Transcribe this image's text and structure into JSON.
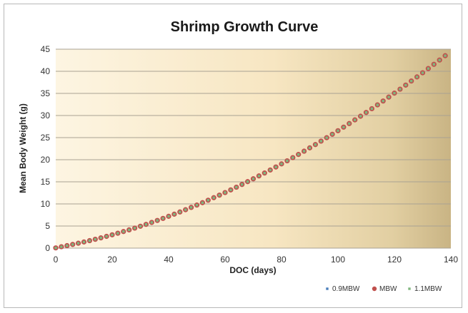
{
  "chart_data": {
    "type": "scatter",
    "title": "Shrimp Growth Curve",
    "xlabel": "DOC (days)",
    "ylabel": "Mean Body Weight (g)",
    "xlim": [
      0,
      140
    ],
    "ylim": [
      0,
      45
    ],
    "x_ticks": [
      "0",
      "20",
      "40",
      "60",
      "80",
      "100",
      "120",
      "140"
    ],
    "y_ticks": [
      "0",
      "5",
      "10",
      "15",
      "20",
      "25",
      "30",
      "35",
      "40",
      "45"
    ],
    "grid": "horizontal",
    "legend_position": "bottom-right",
    "x": [
      0,
      2,
      4,
      6,
      8,
      10,
      12,
      14,
      16,
      18,
      20,
      22,
      24,
      26,
      28,
      30,
      32,
      34,
      36,
      38,
      40,
      42,
      44,
      46,
      48,
      50,
      52,
      54,
      56,
      58,
      60,
      62,
      64,
      66,
      68,
      70,
      72,
      74,
      76,
      78,
      80,
      82,
      84,
      86,
      88,
      90,
      92,
      94,
      96,
      98,
      100,
      102,
      104,
      106,
      108,
      110,
      112,
      114,
      116,
      118,
      120,
      122,
      124,
      126,
      128,
      130,
      132,
      134,
      136,
      138
    ],
    "series": [
      {
        "name": "0.9MBW",
        "color": "#4a7ebb",
        "marker": "square",
        "values": [
          0.05,
          0.31,
          0.56,
          0.83,
          1.11,
          1.39,
          1.69,
          2.0,
          2.32,
          2.66,
          3.01,
          3.37,
          3.75,
          4.13,
          4.53,
          4.95,
          5.37,
          5.81,
          6.26,
          6.72,
          7.2,
          7.68,
          8.18,
          8.69,
          9.21,
          9.74,
          10.28,
          10.84,
          11.41,
          11.98,
          12.57,
          13.17,
          13.78,
          14.4,
          15.04,
          15.68,
          16.33,
          16.99,
          17.67,
          18.35,
          19.05,
          19.75,
          20.47,
          21.19,
          21.93,
          22.68,
          23.43,
          24.2,
          24.98,
          25.76,
          26.56,
          27.37,
          28.18,
          29.01,
          29.84,
          30.69,
          31.54,
          32.41,
          33.28,
          34.17,
          35.06,
          35.96,
          36.88,
          37.8,
          38.73,
          39.67,
          40.62,
          41.58,
          42.55,
          43.53
        ]
      },
      {
        "name": "MBW",
        "color": "#c0504d",
        "marker": "circle",
        "values": [
          0.05,
          0.31,
          0.56,
          0.83,
          1.11,
          1.39,
          1.69,
          2.0,
          2.32,
          2.66,
          3.01,
          3.37,
          3.75,
          4.13,
          4.53,
          4.95,
          5.37,
          5.81,
          6.26,
          6.72,
          7.2,
          7.68,
          8.18,
          8.69,
          9.21,
          9.74,
          10.28,
          10.84,
          11.41,
          11.98,
          12.57,
          13.17,
          13.78,
          14.4,
          15.04,
          15.68,
          16.33,
          16.99,
          17.67,
          18.35,
          19.05,
          19.75,
          20.47,
          21.19,
          21.93,
          22.68,
          23.43,
          24.2,
          24.98,
          25.76,
          26.56,
          27.37,
          28.18,
          29.01,
          29.84,
          30.69,
          31.54,
          32.41,
          33.28,
          34.17,
          35.06,
          35.96,
          36.88,
          37.8,
          38.73,
          39.67,
          40.62,
          41.58,
          42.55,
          43.53
        ]
      },
      {
        "name": "1.1MBW",
        "color": "#7fb77e",
        "marker": "square",
        "values": [
          0.05,
          0.31,
          0.56,
          0.83,
          1.11,
          1.39,
          1.69,
          2.0,
          2.32,
          2.66,
          3.01,
          3.37,
          3.75,
          4.13,
          4.53,
          4.95,
          5.37,
          5.81,
          6.26,
          6.72,
          7.2,
          7.68,
          8.18,
          8.69,
          9.21,
          9.74,
          10.28,
          10.84,
          11.41,
          11.98,
          12.57,
          13.17,
          13.78,
          14.4,
          15.04,
          15.68,
          16.33,
          16.99,
          17.67,
          18.35,
          19.05,
          19.75,
          20.47,
          21.19,
          21.93,
          22.68,
          23.43,
          24.2,
          24.98,
          25.76,
          26.56,
          27.37,
          28.18,
          29.01,
          29.84,
          30.69,
          31.54,
          32.41,
          33.28,
          34.17,
          35.06,
          35.96,
          36.88,
          37.8,
          38.73,
          39.67,
          40.62,
          41.58,
          42.55,
          43.53
        ]
      }
    ]
  }
}
